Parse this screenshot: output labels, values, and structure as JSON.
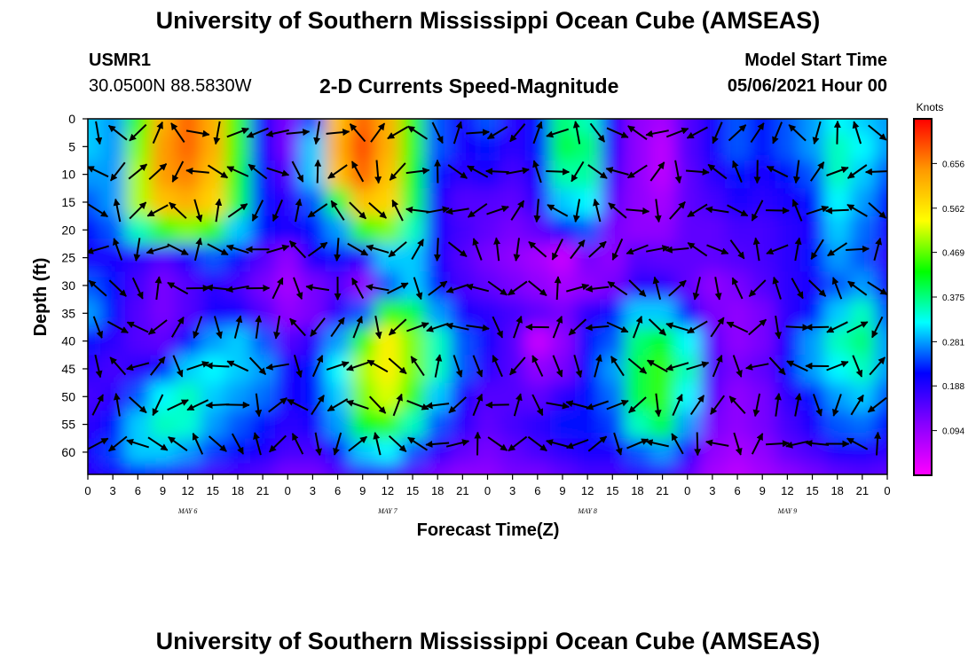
{
  "header": {
    "title": "University of Southern Mississippi Ocean Cube (AMSEAS)",
    "station": "USMR1",
    "coordinates": "30.0500N  88.5830W",
    "plot_title": "2-D Currents Speed-Magnitude",
    "model_start_label": "Model Start Time",
    "model_start_value": "05/06/2021 Hour 00"
  },
  "footer": {
    "title": "University of Southern Mississippi Ocean Cube (AMSEAS)"
  },
  "chart_data": {
    "type": "heatmap",
    "xlabel": "Forecast Time(Z)",
    "ylabel": "Depth (ft)",
    "x_ticks": [
      "0",
      "3",
      "6",
      "9",
      "12",
      "15",
      "18",
      "21",
      "0",
      "3",
      "6",
      "9",
      "12",
      "15",
      "18",
      "21",
      "0",
      "3",
      "6",
      "9",
      "12",
      "15",
      "18",
      "21",
      "0",
      "3",
      "6",
      "9",
      "12",
      "15",
      "18",
      "21",
      "0"
    ],
    "day_labels": [
      "MAY  6",
      "MAY  7",
      "MAY  8",
      "MAY  9"
    ],
    "x_range_hours": [
      0,
      96
    ],
    "y_ticks": [
      0,
      5,
      10,
      15,
      20,
      25,
      30,
      35,
      40,
      45,
      50,
      55,
      60
    ],
    "y_range_ft": [
      0,
      64
    ],
    "y_inverted": true,
    "colorbar": {
      "unit": "Knots",
      "ticks": [
        0.656,
        0.562,
        0.469,
        0.375,
        0.281,
        0.188,
        0.094
      ],
      "range": [
        0.0,
        0.75
      ],
      "colors": [
        "#ff00ff",
        "#8800ff",
        "#0000ff",
        "#00ffff",
        "#00ff00",
        "#ffff00",
        "#ff9900",
        "#ff0000"
      ]
    },
    "speed_grid": {
      "hours": [
        0,
        3,
        6,
        9,
        12,
        15,
        18,
        21,
        24,
        27,
        30,
        33,
        36,
        39,
        42,
        45,
        48,
        51,
        54,
        57,
        60,
        63,
        66,
        69,
        72,
        75,
        78,
        81,
        84,
        87,
        90,
        93,
        96
      ],
      "depths_ft": [
        0,
        5,
        10,
        15,
        20,
        25,
        30,
        35,
        40,
        45,
        50,
        55,
        60,
        64
      ],
      "values": [
        [
          0.3,
          0.28,
          0.45,
          0.62,
          0.68,
          0.62,
          0.45,
          0.2,
          0.12,
          0.25,
          0.6,
          0.68,
          0.62,
          0.45,
          0.25,
          0.2,
          0.25,
          0.18,
          0.22,
          0.38,
          0.35,
          0.2,
          0.1,
          0.08,
          0.15,
          0.2,
          0.25,
          0.22,
          0.25,
          0.28,
          0.32,
          0.3,
          0.28
        ],
        [
          0.3,
          0.28,
          0.48,
          0.64,
          0.68,
          0.62,
          0.45,
          0.2,
          0.12,
          0.3,
          0.62,
          0.7,
          0.62,
          0.45,
          0.25,
          0.2,
          0.22,
          0.18,
          0.22,
          0.4,
          0.38,
          0.18,
          0.1,
          0.06,
          0.15,
          0.2,
          0.25,
          0.22,
          0.25,
          0.28,
          0.35,
          0.32,
          0.28
        ],
        [
          0.28,
          0.28,
          0.5,
          0.64,
          0.66,
          0.6,
          0.42,
          0.22,
          0.15,
          0.3,
          0.6,
          0.68,
          0.6,
          0.42,
          0.22,
          0.18,
          0.2,
          0.16,
          0.2,
          0.36,
          0.36,
          0.16,
          0.1,
          0.06,
          0.14,
          0.18,
          0.22,
          0.2,
          0.22,
          0.25,
          0.35,
          0.3,
          0.25
        ],
        [
          0.25,
          0.28,
          0.5,
          0.6,
          0.62,
          0.58,
          0.4,
          0.22,
          0.18,
          0.25,
          0.4,
          0.6,
          0.58,
          0.4,
          0.2,
          0.15,
          0.15,
          0.14,
          0.18,
          0.3,
          0.32,
          0.14,
          0.1,
          0.08,
          0.14,
          0.16,
          0.2,
          0.18,
          0.2,
          0.22,
          0.32,
          0.28,
          0.22
        ],
        [
          0.22,
          0.25,
          0.35,
          0.45,
          0.48,
          0.45,
          0.3,
          0.22,
          0.2,
          0.22,
          0.28,
          0.45,
          0.48,
          0.35,
          0.2,
          0.16,
          0.14,
          0.12,
          0.14,
          0.22,
          0.25,
          0.12,
          0.1,
          0.1,
          0.14,
          0.14,
          0.16,
          0.16,
          0.18,
          0.2,
          0.3,
          0.26,
          0.2
        ],
        [
          0.2,
          0.2,
          0.18,
          0.15,
          0.2,
          0.25,
          0.22,
          0.15,
          0.1,
          0.2,
          0.22,
          0.18,
          0.3,
          0.3,
          0.2,
          0.15,
          0.12,
          0.1,
          0.08,
          0.05,
          0.12,
          0.1,
          0.15,
          0.14,
          0.14,
          0.14,
          0.15,
          0.16,
          0.18,
          0.22,
          0.28,
          0.25,
          0.18
        ],
        [
          0.25,
          0.22,
          0.16,
          0.12,
          0.15,
          0.18,
          0.16,
          0.12,
          0.08,
          0.12,
          0.15,
          0.1,
          0.25,
          0.3,
          0.22,
          0.16,
          0.14,
          0.12,
          0.1,
          0.08,
          0.1,
          0.12,
          0.18,
          0.18,
          0.14,
          0.1,
          0.12,
          0.15,
          0.18,
          0.2,
          0.25,
          0.28,
          0.2
        ],
        [
          0.28,
          0.22,
          0.15,
          0.12,
          0.15,
          0.2,
          0.2,
          0.15,
          0.1,
          0.12,
          0.18,
          0.25,
          0.45,
          0.4,
          0.28,
          0.2,
          0.18,
          0.16,
          0.14,
          0.12,
          0.18,
          0.22,
          0.3,
          0.3,
          0.22,
          0.12,
          0.1,
          0.12,
          0.18,
          0.22,
          0.3,
          0.35,
          0.25
        ],
        [
          0.22,
          0.18,
          0.15,
          0.14,
          0.22,
          0.28,
          0.3,
          0.25,
          0.15,
          0.18,
          0.28,
          0.45,
          0.55,
          0.48,
          0.35,
          0.25,
          0.2,
          0.15,
          0.05,
          0.1,
          0.22,
          0.25,
          0.38,
          0.42,
          0.32,
          0.14,
          0.1,
          0.12,
          0.2,
          0.28,
          0.35,
          0.38,
          0.28
        ],
        [
          0.18,
          0.16,
          0.18,
          0.22,
          0.3,
          0.32,
          0.3,
          0.28,
          0.2,
          0.22,
          0.32,
          0.5,
          0.55,
          0.48,
          0.35,
          0.25,
          0.18,
          0.15,
          0.1,
          0.12,
          0.22,
          0.28,
          0.4,
          0.45,
          0.35,
          0.15,
          0.12,
          0.14,
          0.22,
          0.28,
          0.32,
          0.35,
          0.28
        ],
        [
          0.16,
          0.18,
          0.25,
          0.32,
          0.35,
          0.3,
          0.28,
          0.26,
          0.2,
          0.22,
          0.3,
          0.48,
          0.52,
          0.45,
          0.3,
          0.2,
          0.15,
          0.15,
          0.14,
          0.18,
          0.22,
          0.26,
          0.4,
          0.45,
          0.32,
          0.14,
          0.1,
          0.12,
          0.18,
          0.22,
          0.28,
          0.3,
          0.25
        ],
        [
          0.18,
          0.22,
          0.3,
          0.35,
          0.34,
          0.28,
          0.25,
          0.22,
          0.18,
          0.2,
          0.28,
          0.42,
          0.45,
          0.35,
          0.25,
          0.18,
          0.14,
          0.16,
          0.18,
          0.22,
          0.22,
          0.24,
          0.35,
          0.4,
          0.28,
          0.12,
          0.1,
          0.12,
          0.16,
          0.2,
          0.25,
          0.26,
          0.22
        ],
        [
          0.2,
          0.24,
          0.3,
          0.3,
          0.28,
          0.24,
          0.22,
          0.2,
          0.16,
          0.16,
          0.22,
          0.3,
          0.32,
          0.25,
          0.18,
          0.14,
          0.12,
          0.14,
          0.16,
          0.18,
          0.2,
          0.2,
          0.25,
          0.28,
          0.2,
          0.1,
          0.08,
          0.1,
          0.14,
          0.16,
          0.2,
          0.2,
          0.18
        ],
        [
          0.18,
          0.2,
          0.22,
          0.2,
          0.18,
          0.16,
          0.16,
          0.15,
          0.12,
          0.12,
          0.15,
          0.18,
          0.18,
          0.15,
          0.12,
          0.1,
          0.1,
          0.12,
          0.12,
          0.14,
          0.16,
          0.16,
          0.18,
          0.18,
          0.14,
          0.08,
          0.06,
          0.08,
          0.1,
          0.12,
          0.14,
          0.15,
          0.14
        ]
      ]
    }
  }
}
